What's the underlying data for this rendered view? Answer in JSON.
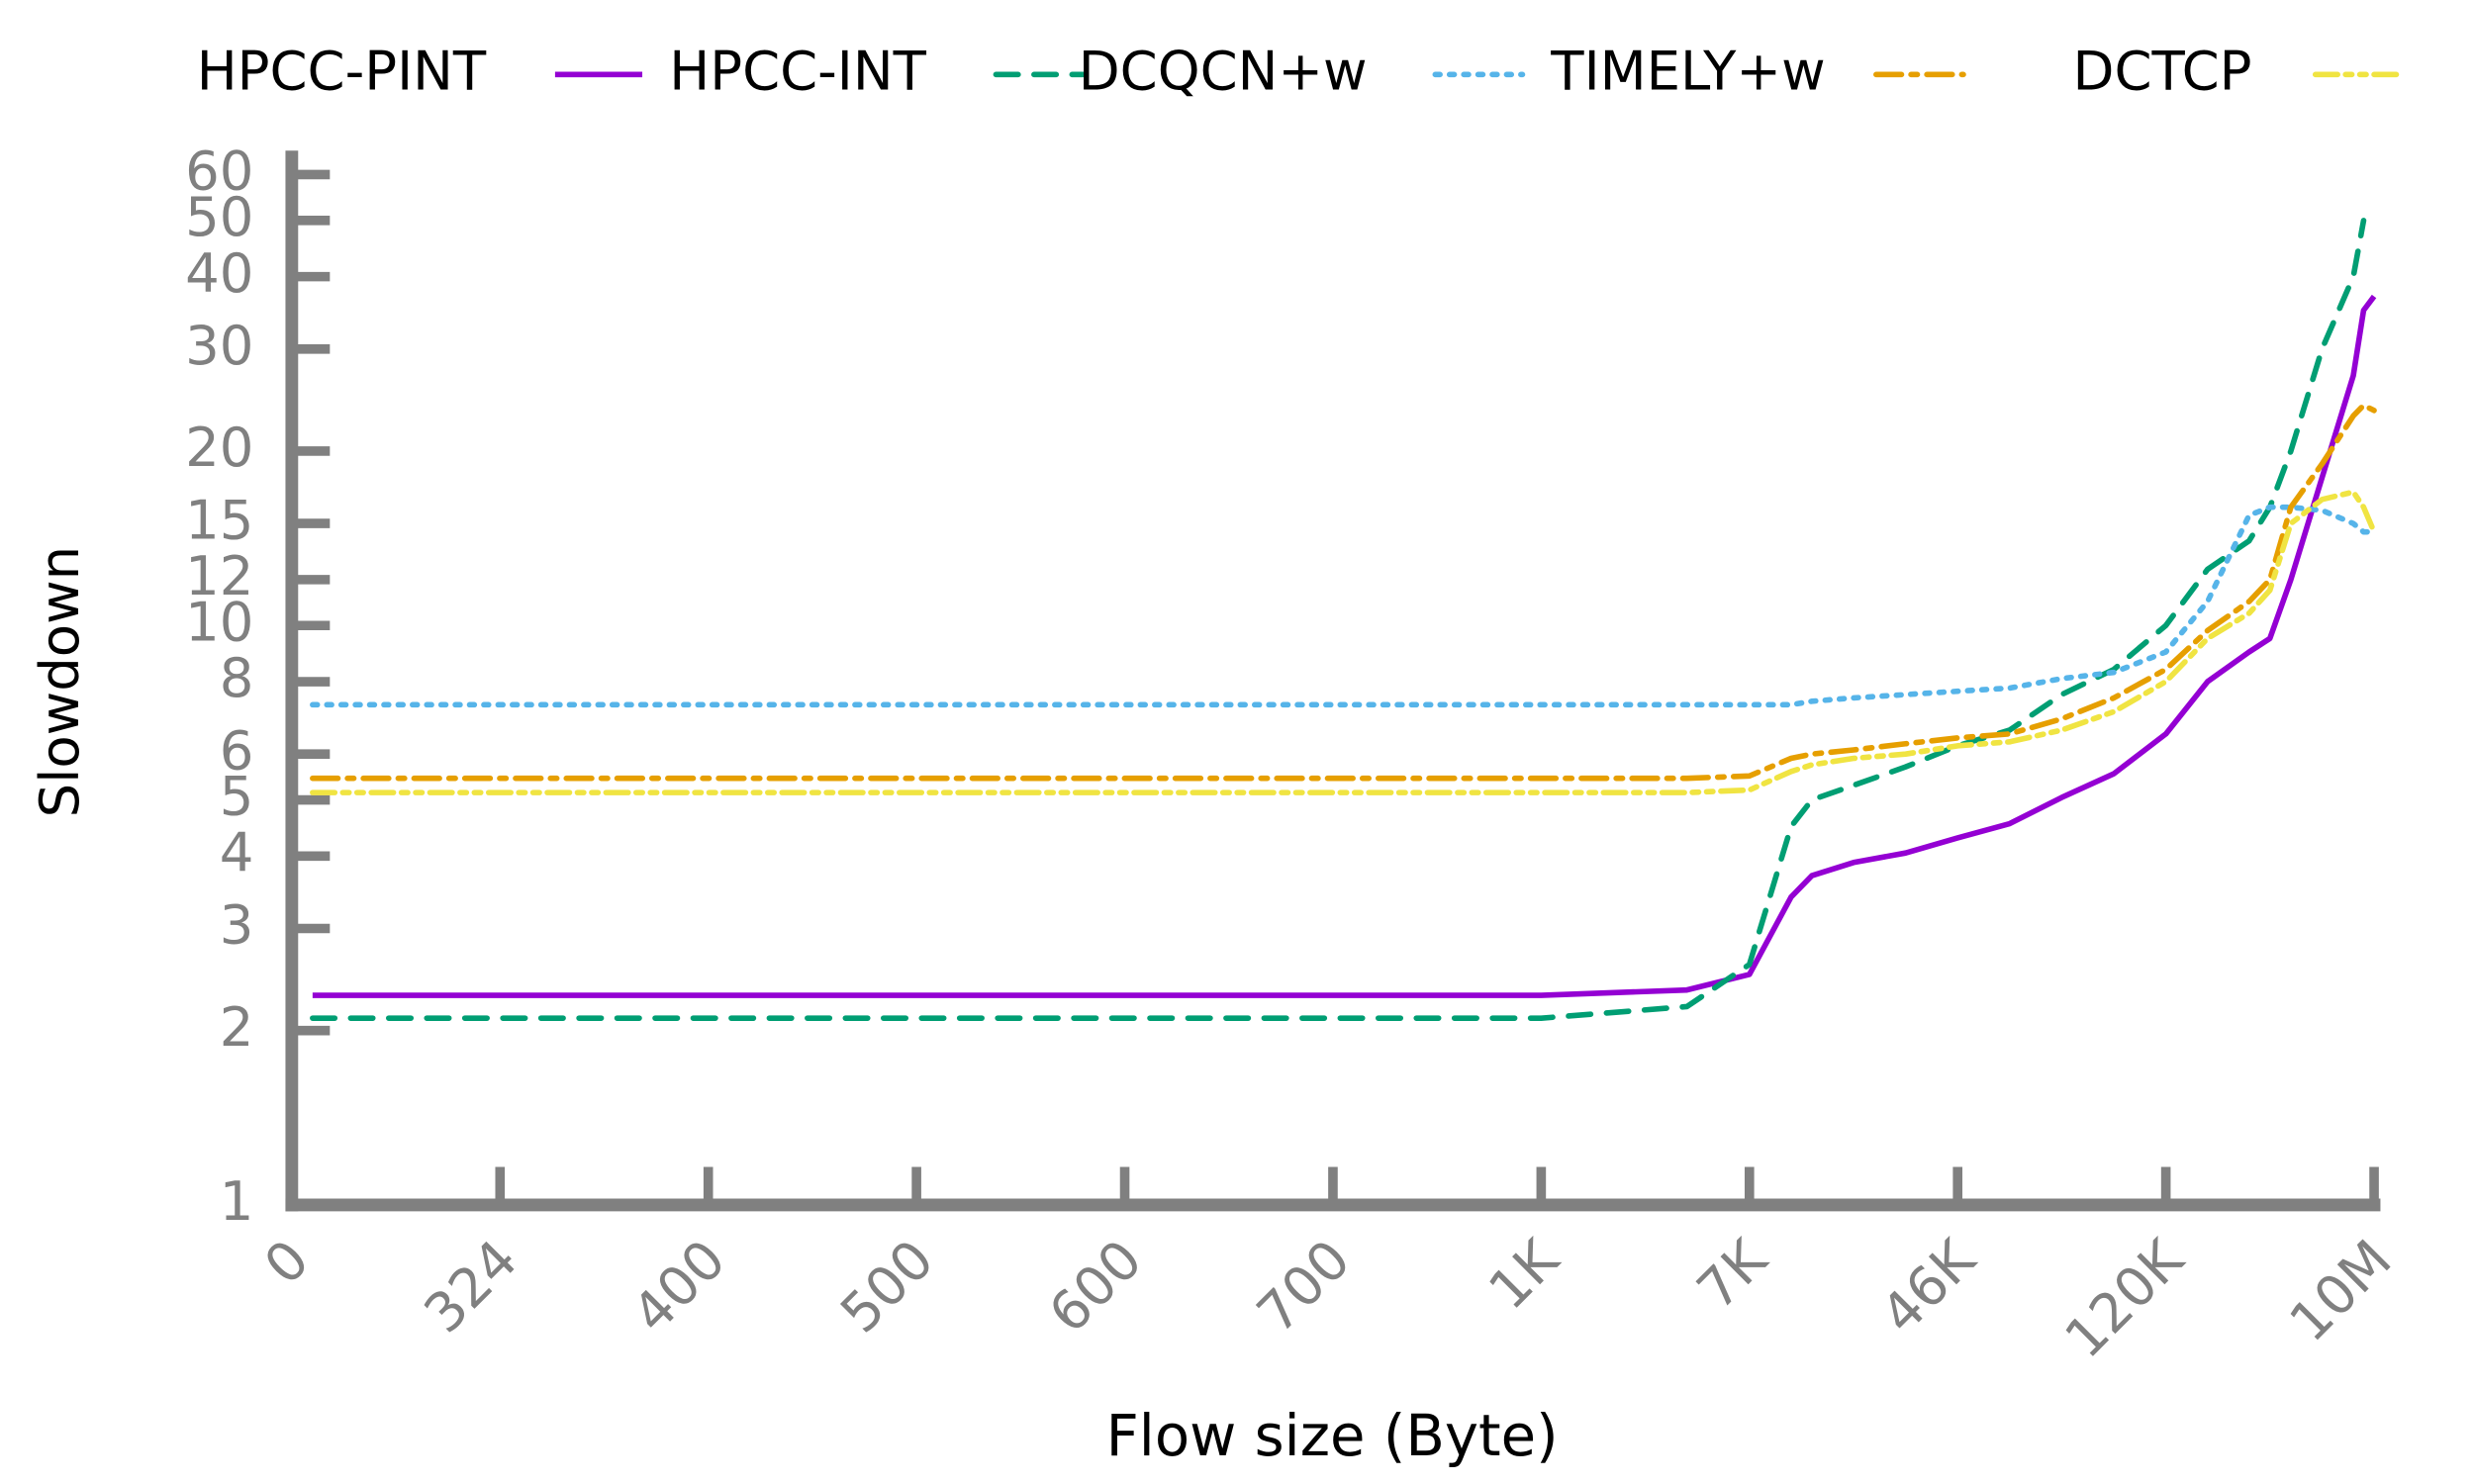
{
  "chart_data": {
    "type": "line",
    "xlabel": "Flow size (Byte)",
    "ylabel": "Slowdown",
    "x": [
      0.1,
      1,
      2,
      3,
      4,
      5,
      6,
      6.7,
      7,
      7.2,
      7.3,
      7.5,
      7.75,
      8,
      8.25,
      8.5,
      8.75,
      9,
      9.2,
      9.4,
      9.5,
      9.6,
      9.75,
      9.9,
      9.95,
      10
    ],
    "xlim": [
      0,
      10
    ],
    "xticks": [
      0,
      {
        "value": 1,
        "label": "324"
      },
      {
        "value": 2,
        "label": "400"
      },
      {
        "value": 3,
        "label": "500"
      },
      {
        "value": 4,
        "label": "600"
      },
      {
        "value": 5,
        "label": "700"
      },
      {
        "value": 6,
        "label": "1K"
      },
      {
        "value": 7,
        "label": "7K"
      },
      {
        "value": 8,
        "label": "46K"
      },
      {
        "value": 9,
        "label": "120K"
      },
      {
        "value": 10,
        "label": "10M"
      }
    ],
    "ylim": [
      1,
      66
    ],
    "yscale": "log",
    "yticks": [
      1,
      2,
      3,
      4,
      5,
      6,
      8,
      10,
      12,
      15,
      20,
      30,
      40,
      50,
      60
    ],
    "series": [
      {
        "name": "HPCC-PINT",
        "color": "#9400d3",
        "dash": "",
        "values": [
          2.3,
          2.3,
          2.3,
          2.3,
          2.3,
          2.3,
          2.3,
          2.35,
          2.5,
          3.4,
          3.7,
          3.9,
          4.05,
          4.3,
          4.55,
          5.05,
          5.55,
          6.5,
          8.0,
          9.0,
          9.5,
          12,
          18,
          27,
          35,
          37
        ]
      },
      {
        "name": "HPCC-INT",
        "color": "#009e73",
        "dash": "14 10",
        "values": [
          2.1,
          2.1,
          2.1,
          2.1,
          2.1,
          2.1,
          2.1,
          2.2,
          2.6,
          4.5,
          5.0,
          5.3,
          5.7,
          6.2,
          6.6,
          7.6,
          8.4,
          10,
          12.5,
          14,
          16,
          20,
          30,
          40,
          50,
          null
        ]
      },
      {
        "name": "DCQCN+w",
        "color": "#56b4e9",
        "dash": "3 6",
        "values": [
          7.3,
          7.3,
          7.3,
          7.3,
          7.3,
          7.3,
          7.3,
          7.3,
          7.3,
          7.3,
          7.4,
          7.5,
          7.6,
          7.7,
          7.8,
          8.1,
          8.3,
          9.0,
          11,
          15.5,
          16,
          16,
          15.8,
          15,
          14.5,
          14.5
        ]
      },
      {
        "name": "TIMELY+w",
        "color": "#e69f00",
        "dash": "16 6 4 6",
        "values": [
          5.45,
          5.45,
          5.45,
          5.45,
          5.45,
          5.45,
          5.45,
          5.45,
          5.5,
          5.9,
          6.0,
          6.1,
          6.25,
          6.4,
          6.5,
          6.9,
          7.5,
          8.4,
          9.8,
          11,
          12,
          16,
          19,
          23,
          24,
          23.5
        ]
      },
      {
        "name": "DCTCP",
        "color": "#f0e442",
        "dash": "14 5 4 5 4 5",
        "values": [
          5.15,
          5.15,
          5.15,
          5.15,
          5.15,
          5.15,
          5.15,
          5.15,
          5.2,
          5.6,
          5.75,
          5.9,
          6.0,
          6.2,
          6.3,
          6.6,
          7.1,
          8.0,
          9.5,
          10.5,
          11.5,
          15,
          16.5,
          17,
          16,
          14.5
        ]
      }
    ]
  }
}
